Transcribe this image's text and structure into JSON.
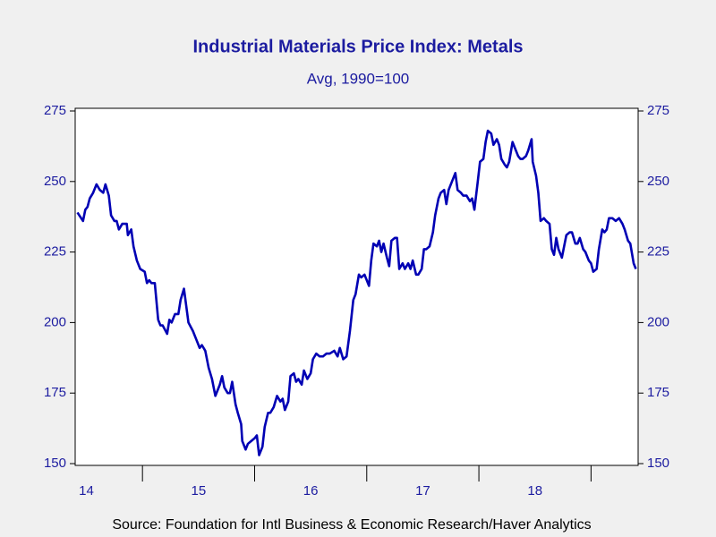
{
  "chart_data": {
    "type": "line",
    "title": "Industrial Materials Price Index: Metals",
    "subtitle": "Avg, 1990=100",
    "source": "Source:  Foundation for Intl Business & Economic Research/Haver Analytics",
    "color": "#0000b4",
    "x": [
      2014.42,
      2014.47,
      2014.49,
      2014.51,
      2014.53,
      2014.56,
      2014.59,
      2014.62,
      2014.65,
      2014.67,
      2014.7,
      2014.72,
      2014.75,
      2014.77,
      2014.79,
      2014.82,
      2014.86,
      2014.87,
      2014.9,
      2014.92,
      2014.95,
      2014.98,
      2015.02,
      2015.04,
      2015.06,
      2015.08,
      2015.11,
      2015.14,
      2015.16,
      2015.18,
      2015.22,
      2015.24,
      2015.26,
      2015.29,
      2015.32,
      2015.34,
      2015.37,
      2015.39,
      2015.41,
      2015.45,
      2015.48,
      2015.51,
      2015.53,
      2015.56,
      2015.59,
      2015.62,
      2015.65,
      2015.69,
      2015.71,
      2015.73,
      2015.76,
      2015.78,
      2015.8,
      2015.83,
      2015.85,
      2015.88,
      2015.89,
      2015.92,
      2015.94,
      2015.97,
      2016.0,
      2016.02,
      2016.04,
      2016.07,
      2016.09,
      2016.12,
      2016.14,
      2016.17,
      2016.2,
      2016.23,
      2016.25,
      2016.27,
      2016.3,
      2016.32,
      2016.35,
      2016.37,
      2016.39,
      2016.42,
      2016.44,
      2016.47,
      2016.5,
      2016.52,
      2016.55,
      2016.58,
      2016.61,
      2016.64,
      2016.67,
      2016.71,
      2016.74,
      2016.76,
      2016.79,
      2016.82,
      2016.85,
      2016.88,
      2016.9,
      2016.93,
      2016.95,
      2016.98,
      2017.02,
      2017.04,
      2017.06,
      2017.09,
      2017.11,
      2017.13,
      2017.15,
      2017.18,
      2017.2,
      2017.22,
      2017.25,
      2017.27,
      2017.29,
      2017.32,
      2017.34,
      2017.37,
      2017.39,
      2017.41,
      2017.44,
      2017.46,
      2017.49,
      2017.51,
      2017.53,
      2017.56,
      2017.59,
      2017.61,
      2017.64,
      2017.66,
      2017.69,
      2017.71,
      2017.73,
      2017.76,
      2017.79,
      2017.81,
      2017.84,
      2017.86,
      2017.89,
      2017.92,
      2017.94,
      2017.96,
      2017.99,
      2018.01,
      2018.04,
      2018.06,
      2018.08,
      2018.11,
      2018.13,
      2018.16,
      2018.18,
      2018.2,
      2018.23,
      2018.25,
      2018.27,
      2018.3,
      2018.32,
      2018.35,
      2018.37,
      2018.39,
      2018.42,
      2018.44,
      2018.47,
      2018.48,
      2018.51,
      2018.53,
      2018.55,
      2018.58,
      2018.6,
      2018.63,
      2018.65,
      2018.67,
      2018.69,
      2018.71,
      2018.74,
      2018.76,
      2018.78,
      2018.81,
      2018.83,
      2018.86,
      2018.88,
      2018.9,
      2018.93,
      2018.95,
      2018.98,
      2019.0,
      2019.02,
      2019.05,
      2019.07,
      2019.1,
      2019.12,
      2019.14,
      2019.16,
      2019.19,
      2019.22,
      2019.25,
      2019.28,
      2019.3,
      2019.33,
      2019.35,
      2019.38,
      2019.4
    ],
    "values": [
      239,
      236,
      240,
      241,
      244,
      246,
      249,
      247,
      246,
      249,
      245,
      238,
      236,
      236,
      233,
      235,
      235,
      231,
      233,
      227,
      222,
      219,
      218,
      214,
      215,
      214,
      214,
      201,
      199,
      199,
      196,
      201,
      200,
      203,
      203,
      208,
      212,
      206,
      200,
      197,
      194,
      191,
      192,
      190,
      184,
      180,
      174,
      178,
      181,
      177,
      175,
      175,
      179,
      171,
      168,
      164,
      158,
      155,
      157,
      158,
      159,
      160,
      153,
      156,
      163,
      168,
      168,
      170,
      174,
      172,
      173,
      169,
      172,
      181,
      182,
      179,
      180,
      178,
      183,
      180,
      182,
      187,
      189,
      188,
      188,
      189,
      189,
      190,
      188,
      191,
      187,
      188,
      197,
      208,
      210,
      217,
      216,
      217,
      213,
      222,
      228,
      227,
      229,
      225,
      228,
      223,
      220,
      229,
      230,
      230,
      219,
      221,
      219,
      221,
      219,
      222,
      217,
      217,
      219,
      226,
      226,
      227,
      232,
      238,
      244,
      246,
      247,
      242,
      247,
      250,
      253,
      247,
      246,
      245,
      245,
      243,
      244,
      240,
      250,
      257,
      258,
      264,
      268,
      267,
      263,
      265,
      263,
      258,
      256,
      255,
      257,
      264,
      262,
      259,
      258,
      258,
      259,
      261,
      265,
      257,
      252,
      246,
      236,
      237,
      236,
      235,
      226,
      224,
      230,
      226,
      223,
      227,
      231,
      232,
      232,
      228,
      228,
      230,
      226,
      225,
      222,
      221,
      218,
      219,
      226,
      233,
      232,
      233,
      237,
      237,
      236,
      237,
      235,
      233,
      229,
      228,
      221,
      219
    ],
    "xlim": [
      2014.4,
      2019.42
    ],
    "xticks": [
      {
        "value": 2014.5,
        "label": "14"
      },
      {
        "value": 2015.5,
        "label": "15"
      },
      {
        "value": 2016.5,
        "label": "16"
      },
      {
        "value": 2017.5,
        "label": "17"
      },
      {
        "value": 2018.5,
        "label": "18"
      }
    ],
    "xtick_marks": [
      2015,
      2016,
      2017,
      2018,
      2019
    ],
    "ylim": [
      150,
      275
    ],
    "yticks": [
      150,
      175,
      200,
      225,
      250,
      275
    ]
  }
}
